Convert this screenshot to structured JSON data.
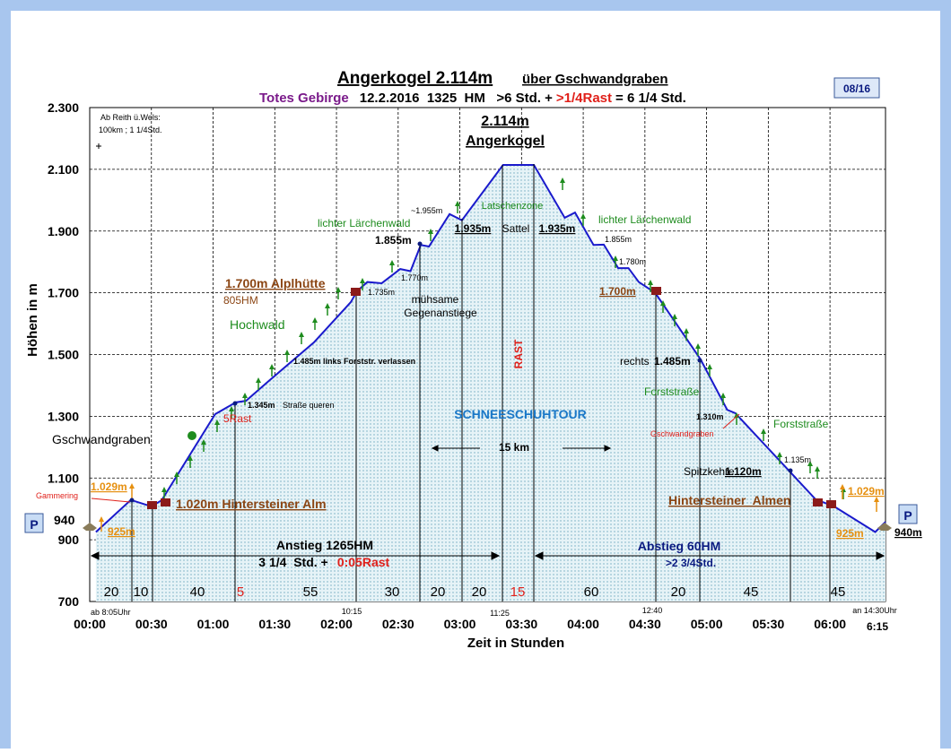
{
  "chart_data": {
    "type": "line",
    "title": "Angerkogel 2.114m",
    "title_suffix": "über Gschwandgraben",
    "subtitle": [
      "Totes Gebirge",
      "12.2.2016  1325  HM   >6 Std. +",
      ">1/4Rast",
      "= 6 1/4 Std."
    ],
    "badge": "08/16",
    "y_label": "Höhen in m",
    "x_label": "Zeit in Stunden",
    "xlim": [
      0,
      387
    ],
    "ylim": [
      700,
      2300
    ],
    "yticks": [
      {
        "value": 700,
        "label": "700"
      },
      {
        "value": 900,
        "label": "900"
      },
      {
        "value": 1100,
        "label": "1.100"
      },
      {
        "value": 1300,
        "label": "1.300"
      },
      {
        "value": 1500,
        "label": "1.500"
      },
      {
        "value": 1700,
        "label": "1.700"
      },
      {
        "value": 1900,
        "label": "1.900"
      },
      {
        "value": 2100,
        "label": "2.100"
      },
      {
        "value": 2300,
        "label": "2.300"
      }
    ],
    "xticks": [
      {
        "value": 0,
        "label": "00:00"
      },
      {
        "value": 30,
        "label": "00:30"
      },
      {
        "value": 60,
        "label": "01:00"
      },
      {
        "value": 90,
        "label": "01:30"
      },
      {
        "value": 120,
        "label": "02:00"
      },
      {
        "value": 150,
        "label": "02:30"
      },
      {
        "value": 180,
        "label": "03:00"
      },
      {
        "value": 210,
        "label": "03:30"
      },
      {
        "value": 240,
        "label": "04:00"
      },
      {
        "value": 270,
        "label": "04:30"
      },
      {
        "value": 300,
        "label": "05:00"
      },
      {
        "value": 330,
        "label": "05:30"
      },
      {
        "value": 360,
        "label": "06:00"
      }
    ],
    "grid": true,
    "series": [
      {
        "color": "#1a1acc",
        "x": [
          3,
          20,
          30,
          35,
          61,
          71,
          76,
          87,
          109,
          127,
          130,
          135,
          142,
          151,
          156,
          161,
          165,
          175,
          181,
          201,
          216,
          231,
          236,
          245,
          250,
          257,
          262,
          267,
          275,
          297,
          310,
          314,
          340,
          353,
          362,
          382,
          387
        ],
        "values": [
          925,
          1029,
          1008,
          1028,
          1307,
          1345,
          1350,
          1414,
          1539,
          1670,
          1705,
          1735,
          1731,
          1777,
          1770,
          1855,
          1850,
          1955,
          1935,
          2114,
          2114,
          1943,
          1960,
          1855,
          1856,
          1780,
          1780,
          1735,
          1700,
          1485,
          1321,
          1310,
          1124,
          1031,
          1008,
          925,
          958
        ]
      }
    ],
    "segments": [
      20,
      10,
      40,
      5,
      55,
      30,
      20,
      20,
      15,
      60,
      20,
      45,
      45
    ],
    "annotations": [
      "Ab Reith ü.Wels:",
      "100km ; 1 1/4Std.",
      "2.114m",
      "Angerkogel",
      "Latschenzone",
      "~1.955m",
      "1.935m",
      "Sattel",
      "1.935m",
      "lichter Lärchenwald",
      "lichter Lärchenwald",
      "1.855m",
      "1.855m",
      "1.770m",
      "1.780m",
      "1.735m",
      "1.700m Alplhütte",
      "805HM",
      "mühsame",
      "Gegenanstiege",
      "1.700m",
      "Hochwald",
      "1.485m links Forststr. verlassen",
      "RAST",
      "rechts",
      "1.485m",
      "Forststraße",
      "1.345m",
      "Straße queren",
      "5Rast",
      "SCHNEESCHUHTOUR",
      "1.310m",
      "Forststraße",
      "Gschwandgraben",
      "Gschwandgraben",
      "15 km",
      "1.135m",
      "Spitzkehre",
      "1.120m",
      "1.029m",
      "Gammering",
      "1.029m",
      "1.020m Hintersteiner Alm",
      "Hintersteiner  Almen",
      "P",
      "P",
      "940",
      "925m",
      "925m",
      "940m",
      "Anstieg 1265HM",
      "3 1/4  Std. +",
      "0:05Rast",
      "Abstieg 60HM",
      ">2 3/4Std.",
      "ab 8:05Uhr",
      "10:15",
      "11:25",
      "12:40",
      "an 14:30Uhr",
      "6:15"
    ]
  }
}
